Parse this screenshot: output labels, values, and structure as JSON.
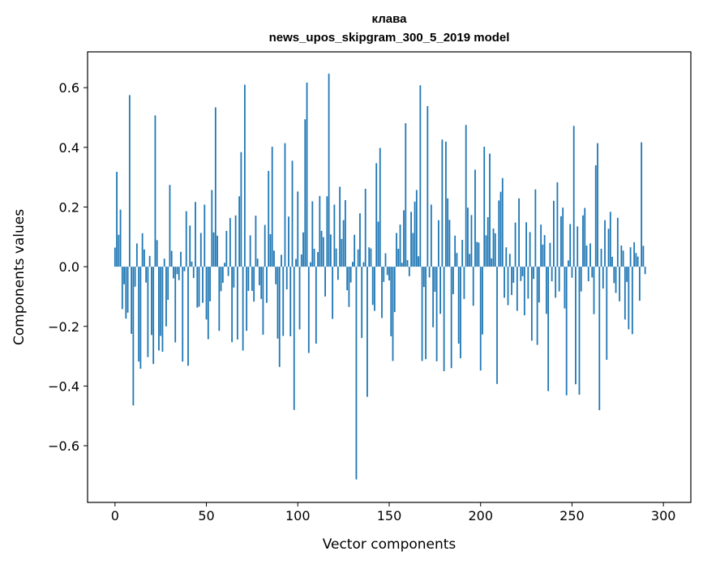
{
  "chart_data": {
    "type": "bar",
    "title_line1": "клава",
    "title_line2": "news_upos_skipgram_300_5_2019 model",
    "xlabel": "Vector components",
    "ylabel": "Components values",
    "xlim": [
      -15,
      315
    ],
    "ylim": [
      -0.79,
      0.72
    ],
    "xticks": [
      0,
      50,
      100,
      150,
      200,
      250,
      300
    ],
    "yticks": [
      -0.6,
      -0.4,
      -0.2,
      0.0,
      0.2,
      0.4,
      0.6
    ],
    "xtick_labels": [
      "0",
      "50",
      "100",
      "150",
      "200",
      "250",
      "300"
    ],
    "ytick_labels": [
      "−0.6",
      "−0.4",
      "−0.2",
      "0.0",
      "0.2",
      "0.4",
      "0.6"
    ],
    "bar_color": "#1f77b4",
    "values": [
      0.064,
      0.318,
      0.107,
      0.191,
      -0.142,
      -0.059,
      -0.174,
      -0.154,
      0.575,
      -0.225,
      -0.465,
      -0.067,
      0.078,
      -0.318,
      -0.342,
      0.112,
      0.058,
      -0.053,
      -0.303,
      0.036,
      -0.229,
      -0.326,
      0.507,
      0.089,
      -0.281,
      -0.232,
      -0.285,
      0.027,
      -0.2,
      -0.111,
      0.274,
      0.053,
      -0.039,
      -0.254,
      -0.025,
      -0.045,
      0.05,
      -0.318,
      -0.015,
      0.186,
      -0.332,
      0.138,
      0.017,
      -0.038,
      0.217,
      -0.137,
      -0.134,
      0.113,
      -0.121,
      0.208,
      -0.177,
      -0.243,
      -0.116,
      0.257,
      0.115,
      0.534,
      0.104,
      -0.215,
      -0.082,
      -0.054,
      0.013,
      0.12,
      -0.031,
      0.163,
      -0.253,
      -0.07,
      0.172,
      -0.244,
      0.236,
      0.384,
      -0.281,
      0.61,
      -0.215,
      -0.081,
      0.105,
      -0.081,
      -0.117,
      0.171,
      0.027,
      -0.062,
      -0.108,
      -0.228,
      0.14,
      -0.121,
      0.321,
      0.109,
      0.402,
      0.054,
      -0.059,
      -0.241,
      -0.336,
      0.04,
      -0.232,
      0.414,
      -0.076,
      0.168,
      -0.233,
      0.355,
      -0.48,
      0.026,
      0.252,
      -0.21,
      0.041,
      0.115,
      0.494,
      0.617,
      -0.289,
      0.015,
      0.219,
      0.06,
      -0.258,
      0.049,
      0.237,
      0.12,
      0.099,
      -0.1,
      0.236,
      0.647,
      0.108,
      -0.175,
      0.208,
      0.061,
      -0.044,
      0.268,
      0.093,
      0.156,
      0.223,
      -0.079,
      -0.135,
      -0.053,
      0.016,
      0.107,
      -0.713,
      0.058,
      0.179,
      -0.239,
      0.015,
      0.261,
      -0.436,
      0.065,
      0.061,
      -0.128,
      -0.148,
      0.347,
      0.151,
      0.398,
      -0.172,
      -0.051,
      0.045,
      -0.028,
      -0.046,
      -0.233,
      -0.316,
      -0.152,
      0.113,
      0.06,
      0.141,
      0.013,
      0.189,
      0.481,
      0.022,
      -0.032,
      0.184,
      0.113,
      0.218,
      0.257,
      0.035,
      0.608,
      -0.316,
      -0.068,
      -0.31,
      0.538,
      -0.036,
      0.208,
      -0.203,
      -0.084,
      -0.317,
      0.156,
      -0.158,
      0.426,
      -0.35,
      0.419,
      0.229,
      0.157,
      -0.34,
      -0.092,
      0.104,
      0.046,
      -0.258,
      -0.307,
      0.09,
      -0.108,
      0.475,
      0.198,
      0.043,
      0.173,
      -0.131,
      0.325,
      0.083,
      0.081,
      -0.348,
      -0.227,
      0.402,
      0.105,
      0.166,
      0.379,
      0.028,
      0.128,
      0.112,
      -0.393,
      0.222,
      0.251,
      0.297,
      -0.104,
      0.065,
      -0.129,
      0.043,
      -0.095,
      -0.054,
      0.148,
      -0.148,
      0.229,
      -0.048,
      -0.032,
      -0.163,
      0.149,
      -0.107,
      0.116,
      -0.248,
      -0.041,
      0.259,
      -0.262,
      -0.12,
      0.141,
      0.074,
      0.106,
      -0.158,
      -0.417,
      0.08,
      -0.049,
      0.221,
      -0.104,
      0.283,
      -0.083,
      0.169,
      0.198,
      -0.14,
      -0.431,
      0.021,
      0.143,
      -0.037,
      0.472,
      -0.394,
      0.135,
      -0.429,
      -0.083,
      0.172,
      0.197,
      0.071,
      -0.049,
      0.078,
      -0.036,
      -0.159,
      0.34,
      0.414,
      -0.481,
      0.06,
      -0.073,
      0.156,
      -0.312,
      0.127,
      0.184,
      0.033,
      -0.055,
      -0.088,
      0.164,
      -0.116,
      0.071,
      0.054,
      -0.177,
      -0.051,
      -0.21,
      0.065,
      -0.226,
      0.082,
      0.046,
      0.034,
      -0.114,
      0.417,
      0.07,
      -0.025
    ]
  }
}
